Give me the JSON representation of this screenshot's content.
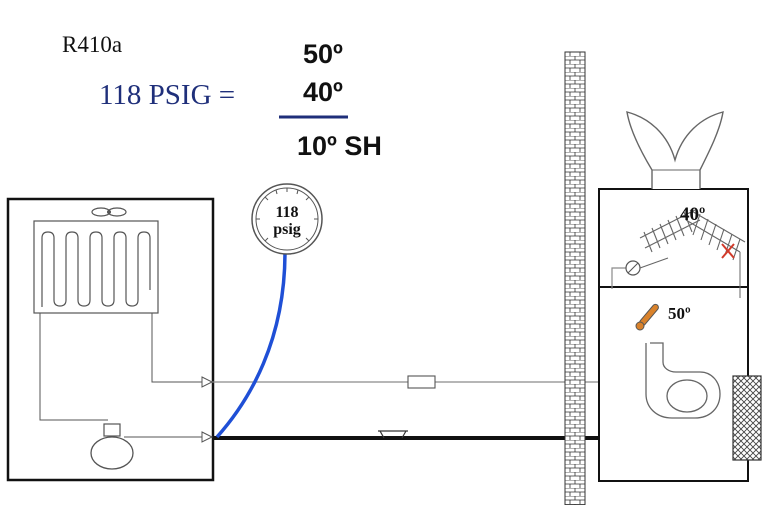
{
  "refrigerant": "R410a",
  "pressure_equation": "118 PSIG =",
  "math": {
    "top": "50º",
    "bottom": "40º",
    "result": "10º SH"
  },
  "gauge": {
    "line1": "118",
    "line2": "psig"
  },
  "evaporator_temp": "40º",
  "suction_line_temp": "50º",
  "colors": {
    "pressure_text": "#1f2f7a",
    "gauge_hose": "#1f4fd6",
    "piping": "#111111",
    "thin_line": "#8a8a8a",
    "x_mark": "#d23a2a",
    "thermometer": "#d9822b"
  },
  "icons": [
    "fan-icon",
    "compressor-icon",
    "blower-icon",
    "gauge-icon",
    "thermometer-icon",
    "txv-bulb-icon",
    "air-filter-icon"
  ]
}
